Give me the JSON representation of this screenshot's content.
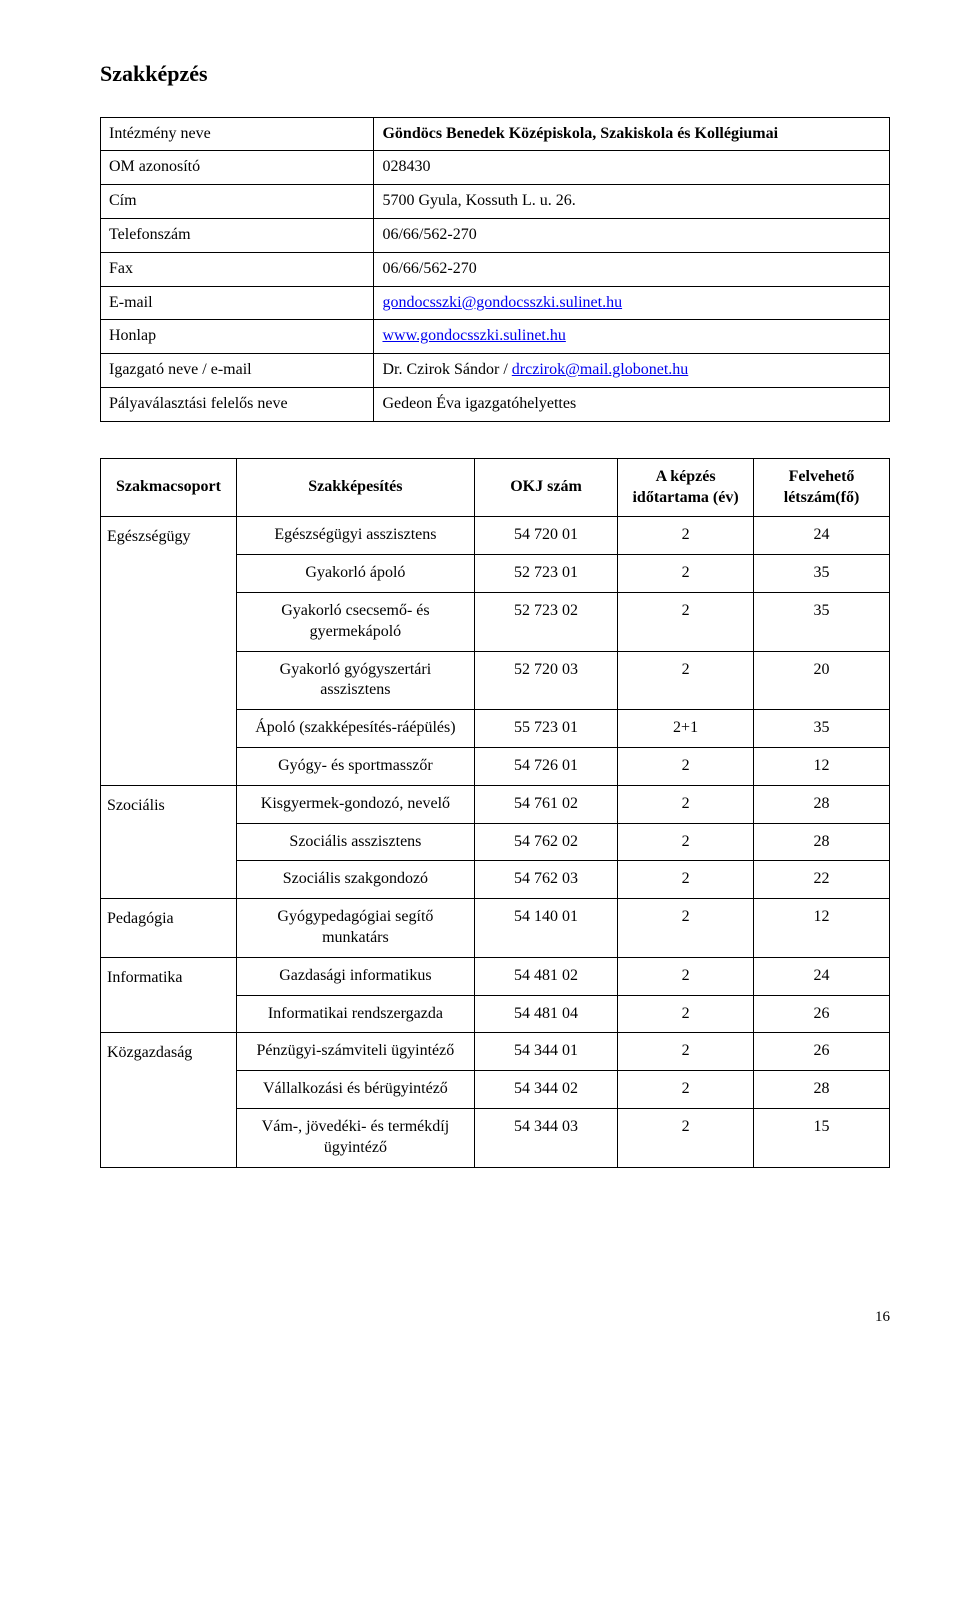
{
  "page_title": "Szakképzés",
  "info": {
    "rows": [
      {
        "label": "Intézmény neve",
        "value": "Göndöcs Benedek Középiskola, Szakiskola és Kollégiumai",
        "bold_value": true
      },
      {
        "label": "OM azonosító",
        "value": "028430"
      },
      {
        "label": "Cím",
        "value": "5700 Gyula, Kossuth L. u. 26."
      },
      {
        "label": "Telefonszám",
        "value": "06/66/562-270"
      },
      {
        "label": "Fax",
        "value": "06/66/562-270"
      },
      {
        "label": "E-mail",
        "value": "gondocsszki@gondocsszki.sulinet.hu",
        "link": true
      },
      {
        "label": "Honlap",
        "value": "www.gondocsszki.sulinet.hu",
        "link": true
      },
      {
        "label": "Igazgató neve / e-mail",
        "value_prefix": "Dr. Czirok Sándor / ",
        "value": "drczirok@mail.globonet.hu",
        "link": true
      },
      {
        "label": "Pályaválasztási felelős neve",
        "value": "Gedeon Éva igazgatóhelyettes"
      }
    ]
  },
  "table": {
    "headers": {
      "group": "Szakmacsoport",
      "qual": "Szakképesítés",
      "okj": "OKJ szám",
      "duration": "A képzés időtartama (év)",
      "capacity": "Felvehető létszám(fő)"
    },
    "groups": [
      {
        "name": "Egészségügy",
        "rows": [
          {
            "qual": "Egészségügyi asszisztens",
            "okj": "54 720 01",
            "dur": "2",
            "cap": "24"
          },
          {
            "qual": "Gyakorló ápoló",
            "okj": "52 723 01",
            "dur": "2",
            "cap": "35"
          },
          {
            "qual": "Gyakorló csecsemő- és gyermekápoló",
            "okj": "52 723 02",
            "dur": "2",
            "cap": "35"
          },
          {
            "qual": "Gyakorló gyógyszertári asszisztens",
            "okj": "52 720 03",
            "dur": "2",
            "cap": "20"
          },
          {
            "qual": "Ápoló (szakképesítés-ráépülés)",
            "okj": "55 723 01",
            "dur": "2+1",
            "cap": "35"
          },
          {
            "qual": "Gyógy- és sportmasszőr",
            "okj": "54 726 01",
            "dur": "2",
            "cap": "12"
          }
        ]
      },
      {
        "name": "Szociális",
        "rows": [
          {
            "qual": "Kisgyermek-gondozó, nevelő",
            "okj": "54 761 02",
            "dur": "2",
            "cap": "28"
          },
          {
            "qual": "Szociális asszisztens",
            "okj": "54 762 02",
            "dur": "2",
            "cap": "28"
          },
          {
            "qual": "Szociális szakgondozó",
            "okj": "54 762 03",
            "dur": "2",
            "cap": "22"
          }
        ]
      },
      {
        "name": "Pedagógia",
        "rows": [
          {
            "qual": "Gyógypedagógiai segítő munkatárs",
            "okj": "54 140 01",
            "dur": "2",
            "cap": "12"
          }
        ]
      },
      {
        "name": "Informatika",
        "rows": [
          {
            "qual": "Gazdasági informatikus",
            "okj": "54 481 02",
            "dur": "2",
            "cap": "24"
          },
          {
            "qual": "Informatikai rendszergazda",
            "okj": "54 481 04",
            "dur": "2",
            "cap": "26"
          }
        ]
      },
      {
        "name": "Közgazdaság",
        "rows": [
          {
            "qual": "Pénzügyi-számviteli ügyintéző",
            "okj": "54 344 01",
            "dur": "2",
            "cap": "26"
          },
          {
            "qual": "Vállalkozási és bérügyintéző",
            "okj": "54 344 02",
            "dur": "2",
            "cap": "28"
          },
          {
            "qual": "Vám-, jövedéki- és termékdíj ügyintéző",
            "okj": "54 344 03",
            "dur": "2",
            "cap": "15"
          }
        ]
      }
    ]
  },
  "page_number": "16"
}
